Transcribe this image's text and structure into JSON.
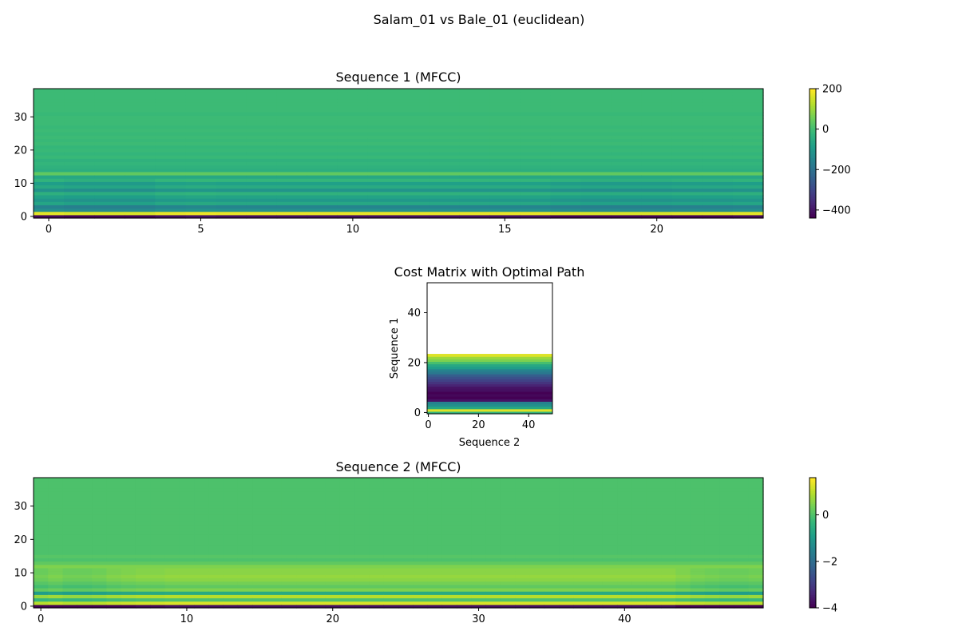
{
  "figure": {
    "title": "Salam_01 vs Bale_01 (euclidean)"
  },
  "colormap": {
    "name": "viridis",
    "stops": [
      "#440154",
      "#482878",
      "#3e4989",
      "#31688e",
      "#26828e",
      "#1f9e89",
      "#35b779",
      "#6ece58",
      "#b5de2b",
      "#fde725"
    ]
  },
  "chart_data": [
    {
      "type": "heatmap",
      "title": "Sequence 1 (MFCC)",
      "xlabel": "",
      "ylabel": "",
      "x_ticks": [
        0,
        5,
        10,
        15,
        20
      ],
      "y_ticks": [
        0,
        10,
        20,
        30
      ],
      "x_range": [
        -0.5,
        23.5
      ],
      "y_range": [
        -0.5,
        38.5
      ],
      "n_frames": 24,
      "n_coeffs": 39,
      "colorbar": {
        "ticks": [
          200,
          0,
          -200,
          -400
        ],
        "range": [
          -440,
          200
        ]
      },
      "coefficient_profile": [
        -420,
        180,
        -120,
        -150,
        -60,
        -100,
        -70,
        -30,
        -110,
        -50,
        -80,
        -20,
        -60,
        40,
        -40,
        -30,
        -20,
        -30,
        -10,
        -20,
        -10,
        -15,
        -5,
        -10,
        -5,
        -10,
        -5,
        -10,
        -5,
        -5,
        -5,
        -10,
        -5,
        -5,
        -5,
        -5,
        -5,
        -5,
        -5
      ],
      "frame_offsets": [
        -10,
        -30,
        -30,
        -30,
        0,
        10,
        0,
        0,
        0,
        0,
        0,
        0,
        0,
        0,
        0,
        0,
        0,
        -20,
        -30,
        -30,
        -30,
        -20,
        -20,
        -10
      ]
    },
    {
      "type": "heatmap",
      "title": "Cost Matrix with Optimal Path",
      "xlabel": "Sequence 2",
      "ylabel": "Sequence 1",
      "x_ticks": [
        0,
        20,
        40
      ],
      "y_ticks": [
        0,
        20,
        40
      ],
      "x_range": [
        -0.5,
        49.5
      ],
      "y_range": [
        -0.5,
        52
      ],
      "n_cols": 50,
      "n_rows": 24,
      "row_values": [
        0.65,
        0.95,
        0.6,
        0.5,
        0.45,
        0.05,
        0.0,
        0.02,
        0.0,
        0.04,
        0.05,
        0.1,
        0.15,
        0.2,
        0.25,
        0.3,
        0.4,
        0.45,
        0.55,
        0.6,
        0.7,
        0.8,
        0.85,
        0.95
      ]
    },
    {
      "type": "heatmap",
      "title": "Sequence 2 (MFCC)",
      "xlabel": "",
      "ylabel": "",
      "x_ticks": [
        0,
        10,
        20,
        30,
        40
      ],
      "y_ticks": [
        0,
        10,
        20,
        30
      ],
      "x_range": [
        -0.5,
        49.5
      ],
      "y_range": [
        -0.5,
        38.5
      ],
      "n_frames": 50,
      "n_coeffs": 39,
      "colorbar": {
        "ticks": [
          0,
          -2,
          -4
        ],
        "range": [
          -4,
          1.6
        ]
      },
      "coefficient_profile": [
        -3.8,
        1.3,
        0.0,
        1.0,
        -0.6,
        0.5,
        0.2,
        0.4,
        0.6,
        0.7,
        0.6,
        0.6,
        0.5,
        0.2,
        0.0,
        0.1,
        0.0,
        0.0,
        0.0,
        0.0,
        0.0,
        0.0,
        0.0,
        0.0,
        0.0,
        0.0,
        0.0,
        0.0,
        0.0,
        0.0,
        0.0,
        0.0,
        0.0,
        0.0,
        0.0,
        0.0,
        0.0,
        0.0,
        0.0
      ],
      "frame_offsets": [
        -0.6,
        -0.4,
        -0.6,
        -0.6,
        -0.5,
        -0.3,
        -0.2,
        -0.1,
        -0.1,
        0,
        0,
        0,
        0,
        0,
        0,
        0,
        0,
        0,
        0,
        0,
        0,
        0,
        0,
        0,
        0,
        0,
        0,
        0,
        0,
        0,
        0,
        0,
        0,
        0,
        0,
        0,
        0,
        0,
        0,
        0,
        0,
        0,
        0,
        0,
        -0.2,
        -0.4,
        -0.5,
        -0.6,
        -0.6,
        -0.5
      ]
    }
  ]
}
